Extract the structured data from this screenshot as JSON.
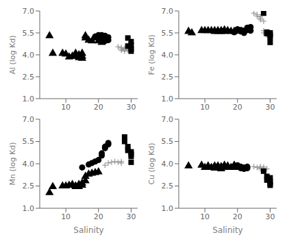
{
  "chart_data": [
    {
      "type": "scatter",
      "ylabel": "Al (log Kd)",
      "xlim": [
        2,
        32
      ],
      "ylim": [
        1.0,
        7.0
      ],
      "xticks": [
        10,
        20,
        30
      ],
      "yticks": [
        {
          "value": 1.0,
          "label": "1.0"
        },
        2.5,
        {
          "value": 4.0,
          "label": "4.0"
        },
        5.5,
        {
          "value": 7.0,
          "label": "7.0"
        }
      ],
      "series": [
        {
          "marker": "triangle",
          "color": "black",
          "x": [
            5,
            6,
            9,
            10,
            11,
            12,
            13,
            13,
            14,
            14,
            15,
            15,
            15,
            16,
            16,
            17,
            18,
            19,
            20,
            21
          ],
          "values": [
            5.3,
            4.1,
            4.1,
            4.05,
            3.85,
            3.9,
            4.1,
            3.9,
            4.0,
            3.8,
            4.1,
            3.9,
            3.75,
            5.3,
            5.15,
            5.0,
            4.95,
            5.15,
            4.95,
            4.85
          ]
        },
        {
          "marker": "circle",
          "color": "black",
          "x": [
            19,
            20,
            21,
            21,
            22,
            22,
            22,
            22,
            23,
            23
          ],
          "values": [
            5.25,
            5.35,
            5.35,
            5.15,
            5.3,
            5.2,
            5.05,
            4.95,
            5.2,
            5.0
          ]
        },
        {
          "marker": "plus",
          "color": "#999999",
          "x": [
            26,
            27,
            27,
            27,
            28,
            28,
            28,
            29,
            29
          ],
          "values": [
            4.55,
            4.5,
            4.4,
            4.3,
            4.45,
            4.35,
            4.25,
            4.4,
            4.3
          ]
        },
        {
          "marker": "square",
          "color": "black",
          "x": [
            29,
            29,
            30,
            30,
            30,
            30
          ],
          "values": [
            5.15,
            4.6,
            4.9,
            4.65,
            4.4,
            4.25
          ]
        }
      ]
    },
    {
      "type": "scatter",
      "ylabel": "Fe (log Kd)",
      "xlim": [
        2,
        32
      ],
      "ylim": [
        1.0,
        7.0
      ],
      "xticks": [
        10,
        20,
        30
      ],
      "yticks": [
        {
          "value": 1.0,
          "label": "1.0"
        },
        2.5,
        {
          "value": 4.0,
          "label": "4.0"
        },
        5.5,
        {
          "value": 7.0,
          "label": "7.0"
        }
      ],
      "series": [
        {
          "marker": "triangle",
          "color": "black",
          "x": [
            5,
            6,
            9,
            10,
            11,
            12,
            13,
            13,
            14,
            14,
            15,
            15,
            16,
            16,
            17,
            18,
            19,
            20
          ],
          "values": [
            5.6,
            5.5,
            5.65,
            5.65,
            5.65,
            5.65,
            5.65,
            5.6,
            5.65,
            5.6,
            5.65,
            5.6,
            5.7,
            5.6,
            5.65,
            5.6,
            5.6,
            5.65
          ]
        },
        {
          "marker": "circle",
          "color": "black",
          "x": [
            19,
            20,
            21,
            21,
            22,
            22,
            22,
            23,
            23,
            24,
            24
          ],
          "values": [
            5.55,
            5.75,
            5.7,
            5.6,
            5.65,
            5.55,
            5.5,
            5.85,
            5.7,
            5.9,
            5.65
          ]
        },
        {
          "marker": "plus",
          "color": "#999999",
          "x": [
            25,
            26,
            26,
            27,
            27,
            27,
            28,
            28,
            28,
            29,
            29,
            29
          ],
          "values": [
            6.85,
            6.75,
            6.65,
            6.6,
            6.5,
            6.4,
            6.3,
            5.65,
            5.5,
            5.55,
            5.45,
            5.35
          ]
        },
        {
          "marker": "square",
          "color": "black",
          "x": [
            28,
            29,
            29,
            30,
            30,
            30,
            30
          ],
          "values": [
            6.85,
            5.55,
            5.45,
            5.5,
            5.35,
            5.2,
            4.85
          ]
        }
      ]
    },
    {
      "type": "scatter",
      "ylabel": "Mn (log Kd)",
      "xlabel": "Salinity",
      "xlim": [
        2,
        32
      ],
      "ylim": [
        1.0,
        7.0
      ],
      "xticks": [
        10,
        20,
        30
      ],
      "yticks": [
        {
          "value": 1.0,
          "label": "1.0"
        },
        2.5,
        {
          "value": 4.0,
          "label": "4.0"
        },
        5.5,
        {
          "value": 7.0,
          "label": "7.0"
        }
      ],
      "series": [
        {
          "marker": "triangle",
          "color": "black",
          "x": [
            5,
            6,
            9,
            10,
            11,
            12,
            13,
            13,
            14,
            14,
            15,
            15,
            16,
            16,
            17,
            18,
            19,
            20
          ],
          "values": [
            2.05,
            2.45,
            2.5,
            2.5,
            2.55,
            2.6,
            2.5,
            2.45,
            2.6,
            2.45,
            2.7,
            2.55,
            3.15,
            2.85,
            3.3,
            3.35,
            3.4,
            3.45
          ]
        },
        {
          "marker": "circle",
          "color": "black",
          "x": [
            15,
            17,
            18,
            19,
            20,
            21,
            21,
            22,
            22,
            23,
            23
          ],
          "values": [
            3.75,
            3.95,
            4.05,
            4.15,
            4.25,
            4.7,
            4.55,
            5.15,
            5.05,
            5.4,
            5.3
          ]
        },
        {
          "marker": "plus",
          "color": "#999999",
          "x": [
            22,
            23,
            24,
            25,
            26,
            27,
            27
          ],
          "values": [
            3.9,
            4.05,
            4.1,
            4.15,
            4.1,
            4.15,
            4.05
          ]
        },
        {
          "marker": "square",
          "color": "black",
          "x": [
            28,
            28,
            29,
            29,
            30,
            30,
            30,
            30
          ],
          "values": [
            5.8,
            5.5,
            5.15,
            4.9,
            4.8,
            4.65,
            4.5,
            4.1
          ]
        }
      ]
    },
    {
      "type": "scatter",
      "ylabel": "Cu (log Kd)",
      "xlabel": "Salinity",
      "xlim": [
        2,
        32
      ],
      "ylim": [
        1.0,
        7.0
      ],
      "xticks": [
        10,
        20,
        30
      ],
      "yticks": [
        {
          "value": 1.0,
          "label": "1.0"
        },
        2.5,
        {
          "value": 4.0,
          "label": "4.0"
        },
        5.5,
        {
          "value": 7.0,
          "label": "7.0"
        }
      ],
      "series": [
        {
          "marker": "triangle",
          "color": "black",
          "x": [
            5,
            9,
            10,
            11,
            12,
            13,
            13,
            14,
            14,
            15,
            15,
            16,
            16,
            17,
            18,
            19,
            20
          ],
          "values": [
            3.85,
            3.9,
            3.75,
            3.85,
            3.75,
            3.85,
            3.7,
            3.85,
            3.7,
            3.8,
            3.65,
            3.9,
            3.75,
            3.85,
            3.75,
            3.9,
            3.75
          ]
        },
        {
          "marker": "circle",
          "color": "black",
          "x": [
            19,
            20,
            21,
            21,
            22,
            22,
            23,
            23
          ],
          "values": [
            3.85,
            3.9,
            3.8,
            3.7,
            3.75,
            3.65,
            3.8,
            3.7
          ]
        },
        {
          "marker": "plus",
          "color": "#999999",
          "x": [
            25,
            26,
            27,
            27,
            27,
            28,
            28,
            28,
            29
          ],
          "values": [
            3.8,
            3.75,
            3.8,
            3.72,
            3.65,
            3.78,
            3.68,
            3.6,
            3.65
          ]
        },
        {
          "marker": "square",
          "color": "black",
          "x": [
            28,
            29,
            29,
            30,
            30,
            30,
            30
          ],
          "values": [
            3.5,
            3.15,
            2.9,
            3.05,
            2.8,
            2.65,
            2.55
          ]
        }
      ]
    }
  ]
}
